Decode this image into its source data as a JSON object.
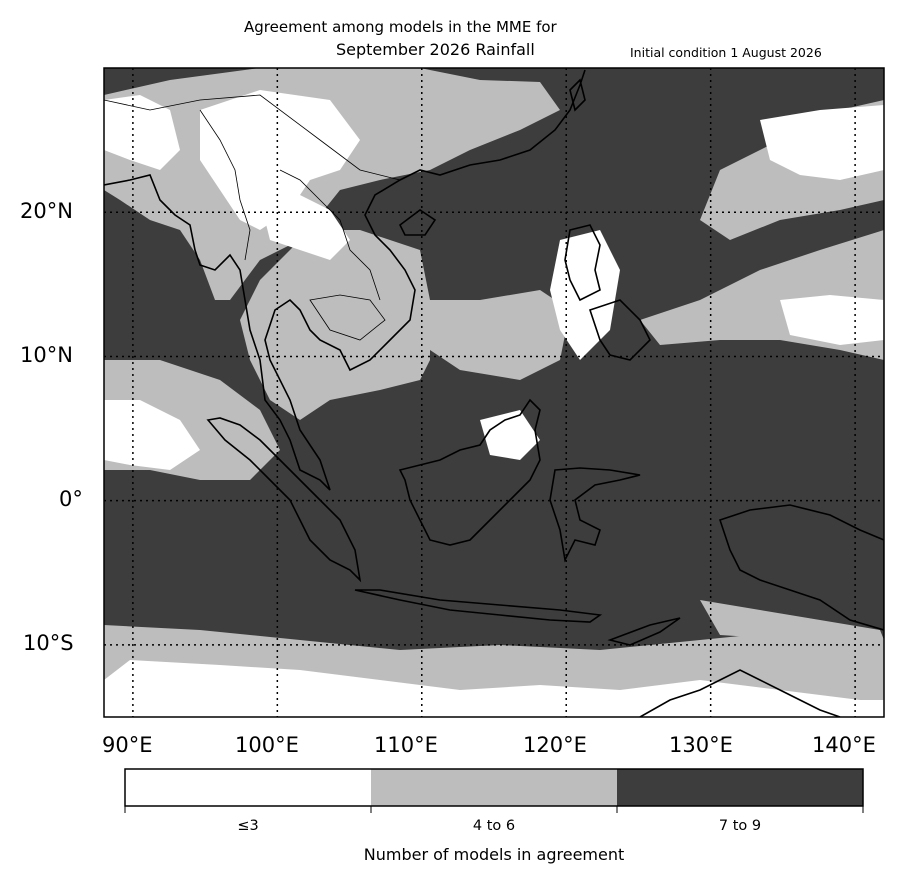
{
  "title": {
    "line1": "Agreement among models in the MME for",
    "line2": "September 2026  Rainfall",
    "initial_condition": "Initial condition 1 August 2026"
  },
  "axes": {
    "lat_labels": [
      "20°N",
      "10°N",
      "0°",
      "10°S"
    ],
    "lon_labels": [
      "90°E",
      "100°E",
      "110°E",
      "120°E",
      "130°E",
      "140°E"
    ],
    "lon_range": [
      88,
      142
    ],
    "lat_range": [
      -15,
      30
    ],
    "gridlines": "dotted"
  },
  "colorbar": {
    "title": "Number of models in agreement",
    "categories": [
      {
        "label": "≤3",
        "color": "#ffffff"
      },
      {
        "label": "4 to 6",
        "color": "#bdbdbd"
      },
      {
        "label": "7 to 9",
        "color": "#3d3d3d"
      }
    ]
  },
  "colors": {
    "low": "#ffffff",
    "mid": "#bdbdbd",
    "high": "#3d3d3d",
    "coast": "#000000"
  }
}
